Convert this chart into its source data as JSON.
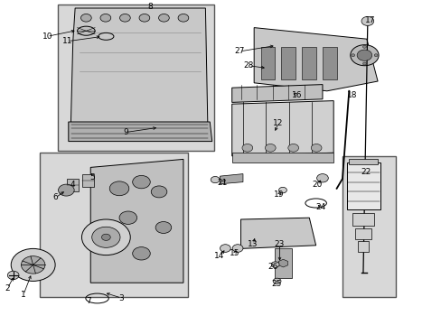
{
  "bg_color": "#ffffff",
  "part_color": "#000000",
  "box_fill": "#d8d8d8",
  "box_edge": "#555555",
  "label_fontsize": 6.5,
  "fig_width": 4.89,
  "fig_height": 3.6,
  "dpi": 100
}
